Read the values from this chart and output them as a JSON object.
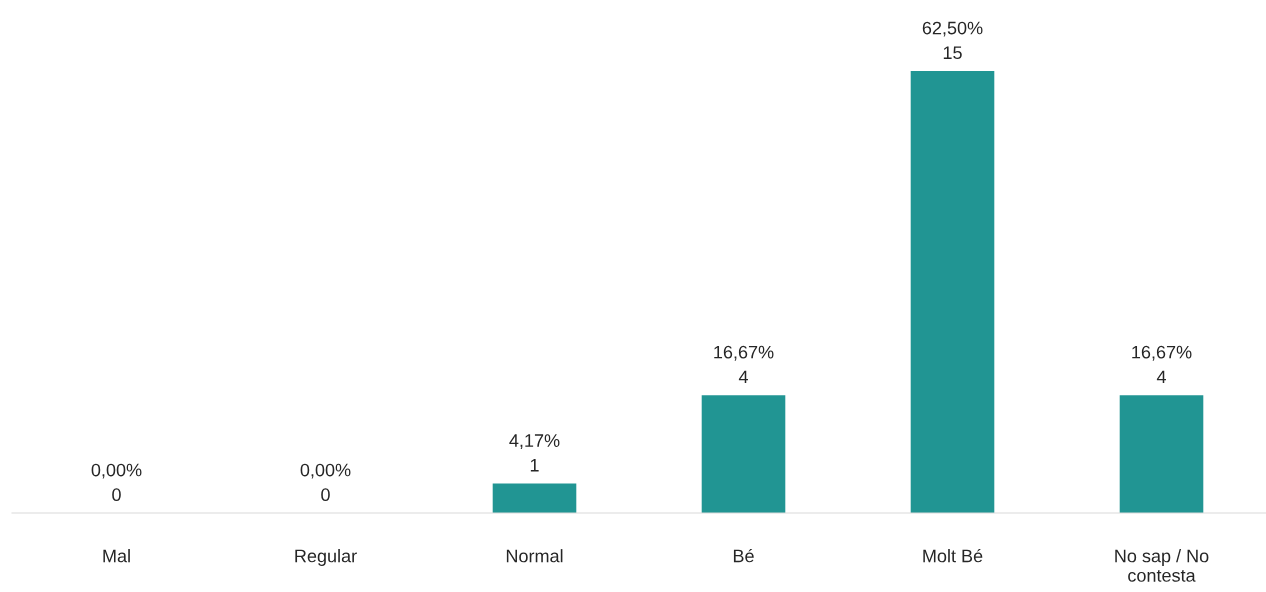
{
  "chart_data": {
    "type": "bar",
    "categories": [
      "Mal",
      "Regular",
      "Normal",
      "Bé",
      "Molt Bé",
      "No sap / No contesta"
    ],
    "values": [
      0,
      0,
      1,
      4,
      15,
      4
    ],
    "value_labels": [
      "0,00%\n0",
      "0,00%\n0",
      "4,17%\n1",
      "16,67%\n4",
      "62,50%\n15",
      "16,67%\n4"
    ],
    "color": "#219593",
    "grid": false,
    "legend": false
  }
}
